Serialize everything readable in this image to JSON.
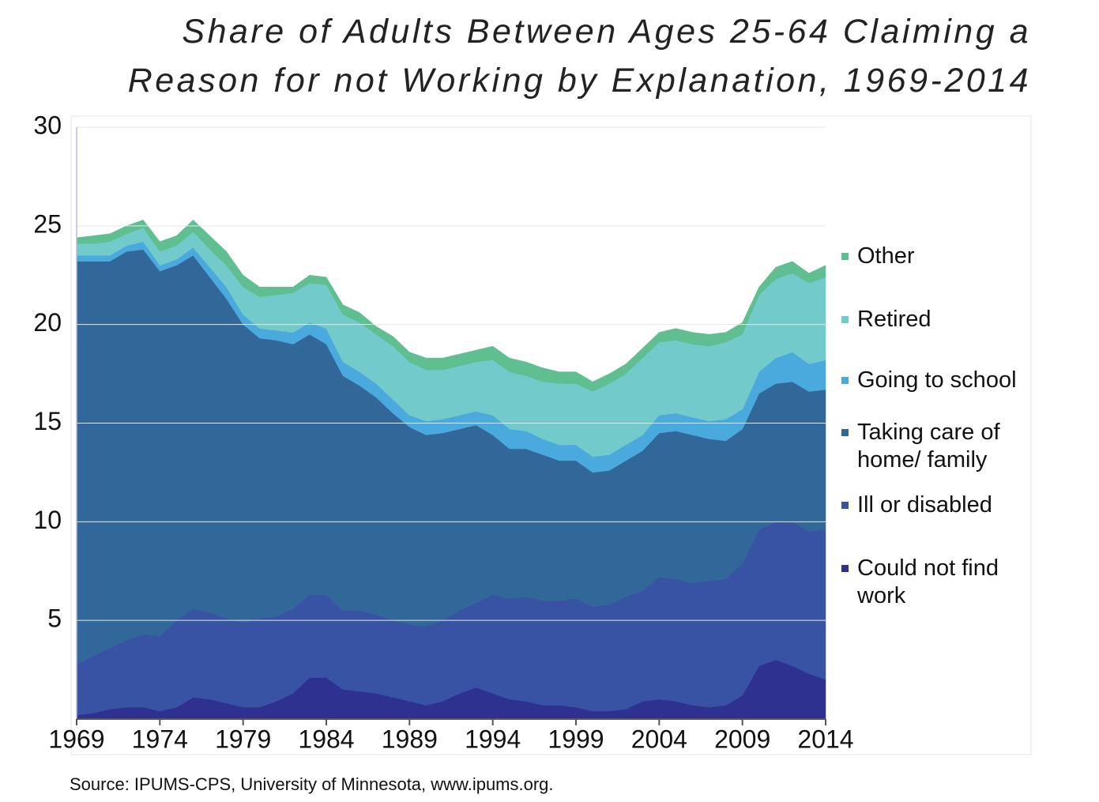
{
  "chart_data": {
    "type": "stacked_area",
    "title": [
      "Share of Adults Between Ages 25-64 Claiming a",
      "Reason for not Working by Explanation, 1969-2014"
    ],
    "source": "Source: IPUMS-CPS, University of Minnesota, www.ipums.org.",
    "x": [
      1969,
      1970,
      1971,
      1972,
      1973,
      1974,
      1975,
      1976,
      1977,
      1978,
      1979,
      1980,
      1981,
      1982,
      1983,
      1984,
      1985,
      1986,
      1987,
      1988,
      1989,
      1990,
      1991,
      1992,
      1993,
      1994,
      1995,
      1996,
      1997,
      1998,
      1999,
      2000,
      2001,
      2002,
      2003,
      2004,
      2005,
      2006,
      2007,
      2008,
      2009,
      2010,
      2011,
      2012,
      2013,
      2014
    ],
    "xlim": [
      1969,
      2014
    ],
    "xticks": [
      1969,
      1974,
      1979,
      1984,
      1989,
      1994,
      1999,
      2004,
      2009,
      2014
    ],
    "ylim": [
      0,
      30
    ],
    "yticks": [
      5,
      10,
      15,
      20,
      25,
      30
    ],
    "grid": true,
    "legend": "right",
    "series": [
      {
        "name": "Could not find work",
        "color": "#2e3190",
        "values": [
          0.2,
          0.3,
          0.5,
          0.6,
          0.6,
          0.4,
          0.6,
          1.1,
          1.0,
          0.8,
          0.6,
          0.6,
          0.9,
          1.3,
          2.1,
          2.1,
          1.5,
          1.4,
          1.3,
          1.1,
          0.9,
          0.7,
          0.9,
          1.3,
          1.6,
          1.3,
          1.0,
          0.9,
          0.7,
          0.7,
          0.6,
          0.4,
          0.4,
          0.5,
          0.9,
          1.0,
          0.9,
          0.7,
          0.6,
          0.7,
          1.2,
          2.7,
          3.0,
          2.7,
          2.3,
          2.0
        ]
      },
      {
        "name": "Ill or disabled",
        "color": "#3953a4",
        "values": [
          2.6,
          2.9,
          3.1,
          3.4,
          3.7,
          3.8,
          4.4,
          4.5,
          4.4,
          4.3,
          4.3,
          4.5,
          4.3,
          4.3,
          4.2,
          4.2,
          4.0,
          4.1,
          4.0,
          3.9,
          3.9,
          4.0,
          4.1,
          4.2,
          4.3,
          5.0,
          5.1,
          5.3,
          5.3,
          5.3,
          5.5,
          5.3,
          5.4,
          5.7,
          5.6,
          6.2,
          6.2,
          6.2,
          6.4,
          6.4,
          6.7,
          6.9,
          7.0,
          7.3,
          7.2,
          7.6
        ]
      },
      {
        "name": "Taking care of home/ family",
        "color": "#326899",
        "values": [
          20.4,
          20.0,
          19.6,
          19.7,
          19.5,
          18.5,
          18.0,
          17.9,
          17.0,
          16.2,
          15.1,
          14.2,
          14.0,
          13.4,
          13.2,
          12.7,
          11.9,
          11.4,
          11.0,
          10.5,
          10.0,
          9.7,
          9.5,
          9.2,
          9.0,
          8.1,
          7.6,
          7.5,
          7.4,
          7.1,
          7.0,
          6.8,
          6.8,
          6.9,
          7.1,
          7.3,
          7.5,
          7.5,
          7.2,
          7.0,
          6.8,
          6.9,
          7.0,
          7.1,
          7.1,
          7.1
        ]
      },
      {
        "name": "Going to school",
        "color": "#4aa9dd",
        "values": [
          0.3,
          0.3,
          0.3,
          0.3,
          0.4,
          0.3,
          0.3,
          0.4,
          0.5,
          0.6,
          0.5,
          0.5,
          0.5,
          0.6,
          0.6,
          0.8,
          0.7,
          0.7,
          0.7,
          0.7,
          0.6,
          0.7,
          0.7,
          0.7,
          0.7,
          1.0,
          1.0,
          0.9,
          0.8,
          0.8,
          0.8,
          0.8,
          0.8,
          0.8,
          0.8,
          0.9,
          0.9,
          0.9,
          0.9,
          1.1,
          1.0,
          1.1,
          1.3,
          1.5,
          1.4,
          1.5
        ]
      },
      {
        "name": "Retired",
        "color": "#72cbca",
        "values": [
          0.6,
          0.6,
          0.7,
          0.6,
          0.7,
          0.7,
          0.7,
          0.8,
          0.9,
          1.1,
          1.4,
          1.6,
          1.8,
          2.0,
          2.0,
          2.2,
          2.4,
          2.5,
          2.5,
          2.7,
          2.7,
          2.6,
          2.5,
          2.5,
          2.5,
          2.8,
          2.9,
          2.8,
          2.9,
          3.1,
          3.1,
          3.3,
          3.6,
          3.6,
          3.9,
          3.7,
          3.7,
          3.7,
          3.8,
          3.9,
          3.8,
          3.9,
          4.0,
          4.0,
          4.1,
          4.2
        ]
      },
      {
        "name": "Other",
        "color": "#5fbf91",
        "values": [
          0.3,
          0.4,
          0.4,
          0.4,
          0.4,
          0.5,
          0.5,
          0.6,
          0.7,
          0.7,
          0.6,
          0.5,
          0.4,
          0.3,
          0.4,
          0.4,
          0.5,
          0.5,
          0.4,
          0.5,
          0.5,
          0.6,
          0.6,
          0.6,
          0.6,
          0.7,
          0.7,
          0.7,
          0.7,
          0.6,
          0.6,
          0.5,
          0.5,
          0.5,
          0.5,
          0.5,
          0.6,
          0.6,
          0.6,
          0.5,
          0.6,
          0.4,
          0.6,
          0.6,
          0.5,
          0.6
        ]
      }
    ]
  }
}
